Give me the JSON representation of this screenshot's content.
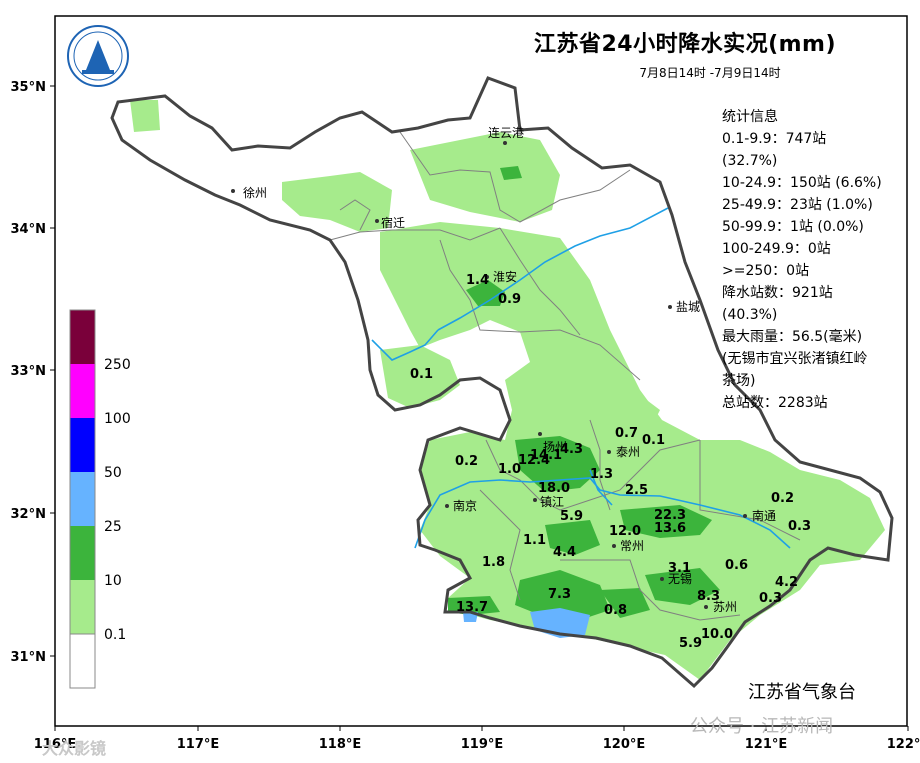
{
  "title": "江苏省24小时降水实况(mm)",
  "subtitle": "7月8日14时 -7月9日14时",
  "stats": {
    "heading": "统计信息",
    "lines": [
      "0.1-9.9：747站",
      "(32.7%)",
      "10-24.9：150站 (6.6%)",
      "25-49.9：23站 (1.0%)",
      "50-99.9：1站 (0.0%)",
      "100-249.9：0站",
      ">=250：0站",
      "降水站数：921站",
      "(40.3%)",
      "最大雨量：56.5(毫米)",
      "(无锡市宜兴张渚镇红岭",
      "茶场)",
      "总站数：2283站"
    ]
  },
  "organization": "江苏省气象台",
  "watermark": "公众号 · 江苏新闻",
  "watermark2": "大众影镜",
  "axes": {
    "x_ticks": [
      "116°E",
      "117°E",
      "118°E",
      "119°E",
      "120°E",
      "121°E",
      "122°E"
    ],
    "y_ticks": [
      "35°N",
      "34°N",
      "33°N",
      "32°N",
      "31°N"
    ]
  },
  "legend": {
    "colors": [
      "#7a003a",
      "#ff00ff",
      "#0000ff",
      "#66b3ff",
      "#3cb43c",
      "#a6eb8c",
      "#ffffff"
    ],
    "labels": [
      "250",
      "100",
      "50",
      "25",
      "10",
      "0.1"
    ]
  },
  "cities": [
    {
      "name": "连云港"
    },
    {
      "name": "徐州"
    },
    {
      "name": "宿迁"
    },
    {
      "name": "淮安"
    },
    {
      "name": "盐城"
    },
    {
      "name": "扬州"
    },
    {
      "name": "泰州"
    },
    {
      "name": "南京"
    },
    {
      "name": "镇江"
    },
    {
      "name": "常州"
    },
    {
      "name": "南通"
    },
    {
      "name": "无锡"
    },
    {
      "name": "苏州"
    }
  ],
  "values": [
    "1.4",
    "0.9",
    "0.1",
    "0.7",
    "0.1",
    "0.2",
    "1.0",
    "12.4",
    "14.1",
    "4.3",
    "1.3",
    "18.0",
    "2.5",
    "0.2",
    "5.9",
    "22.3",
    "0.3",
    "13.6",
    "12.0",
    "1.1",
    "4.4",
    "1.8",
    "3.1",
    "0.6",
    "4.2",
    "7.3",
    "8.3",
    "0.3",
    "13.7",
    "0.8",
    "10.0",
    "5.9"
  ],
  "colors": {
    "light_green": "#a6eb8c",
    "green": "#3cb43c",
    "light_blue": "#66b3ff",
    "river": "#1fa0e6",
    "border": "#444444"
  }
}
